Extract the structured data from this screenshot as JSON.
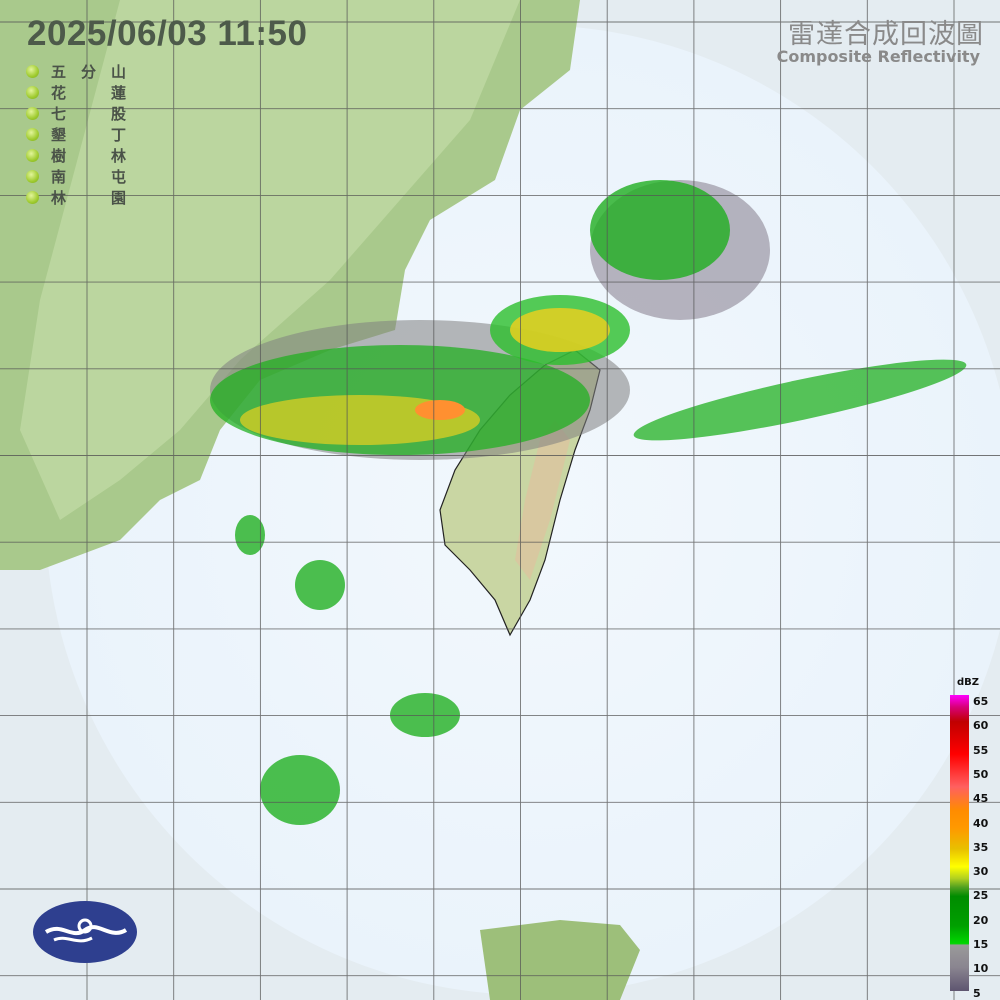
{
  "header": {
    "timestamp": "2025/06/03  11:50",
    "title_zh": "雷達合成回波圖",
    "title_en": "Composite Reflectivity"
  },
  "stations": [
    {
      "first": "五",
      "mid": "分",
      "last": "山"
    },
    {
      "first": "花",
      "mid": "",
      "last": "蓮"
    },
    {
      "first": "七",
      "mid": "",
      "last": "股"
    },
    {
      "first": "墾",
      "mid": "",
      "last": "丁"
    },
    {
      "first": "樹",
      "mid": "",
      "last": "林"
    },
    {
      "first": "南",
      "mid": "",
      "last": "屯"
    },
    {
      "first": "林",
      "mid": "",
      "last": "園"
    }
  ],
  "colorbar": {
    "unit": "dBZ",
    "ticks": [
      "65",
      "60",
      "55",
      "50",
      "45",
      "40",
      "35",
      "30",
      "25",
      "20",
      "15",
      "10",
      "5"
    ]
  },
  "colors": {
    "ocean": "#eef5fb",
    "land": "#9cc47a",
    "grid": "#555555"
  },
  "logo": "cwa-logo"
}
